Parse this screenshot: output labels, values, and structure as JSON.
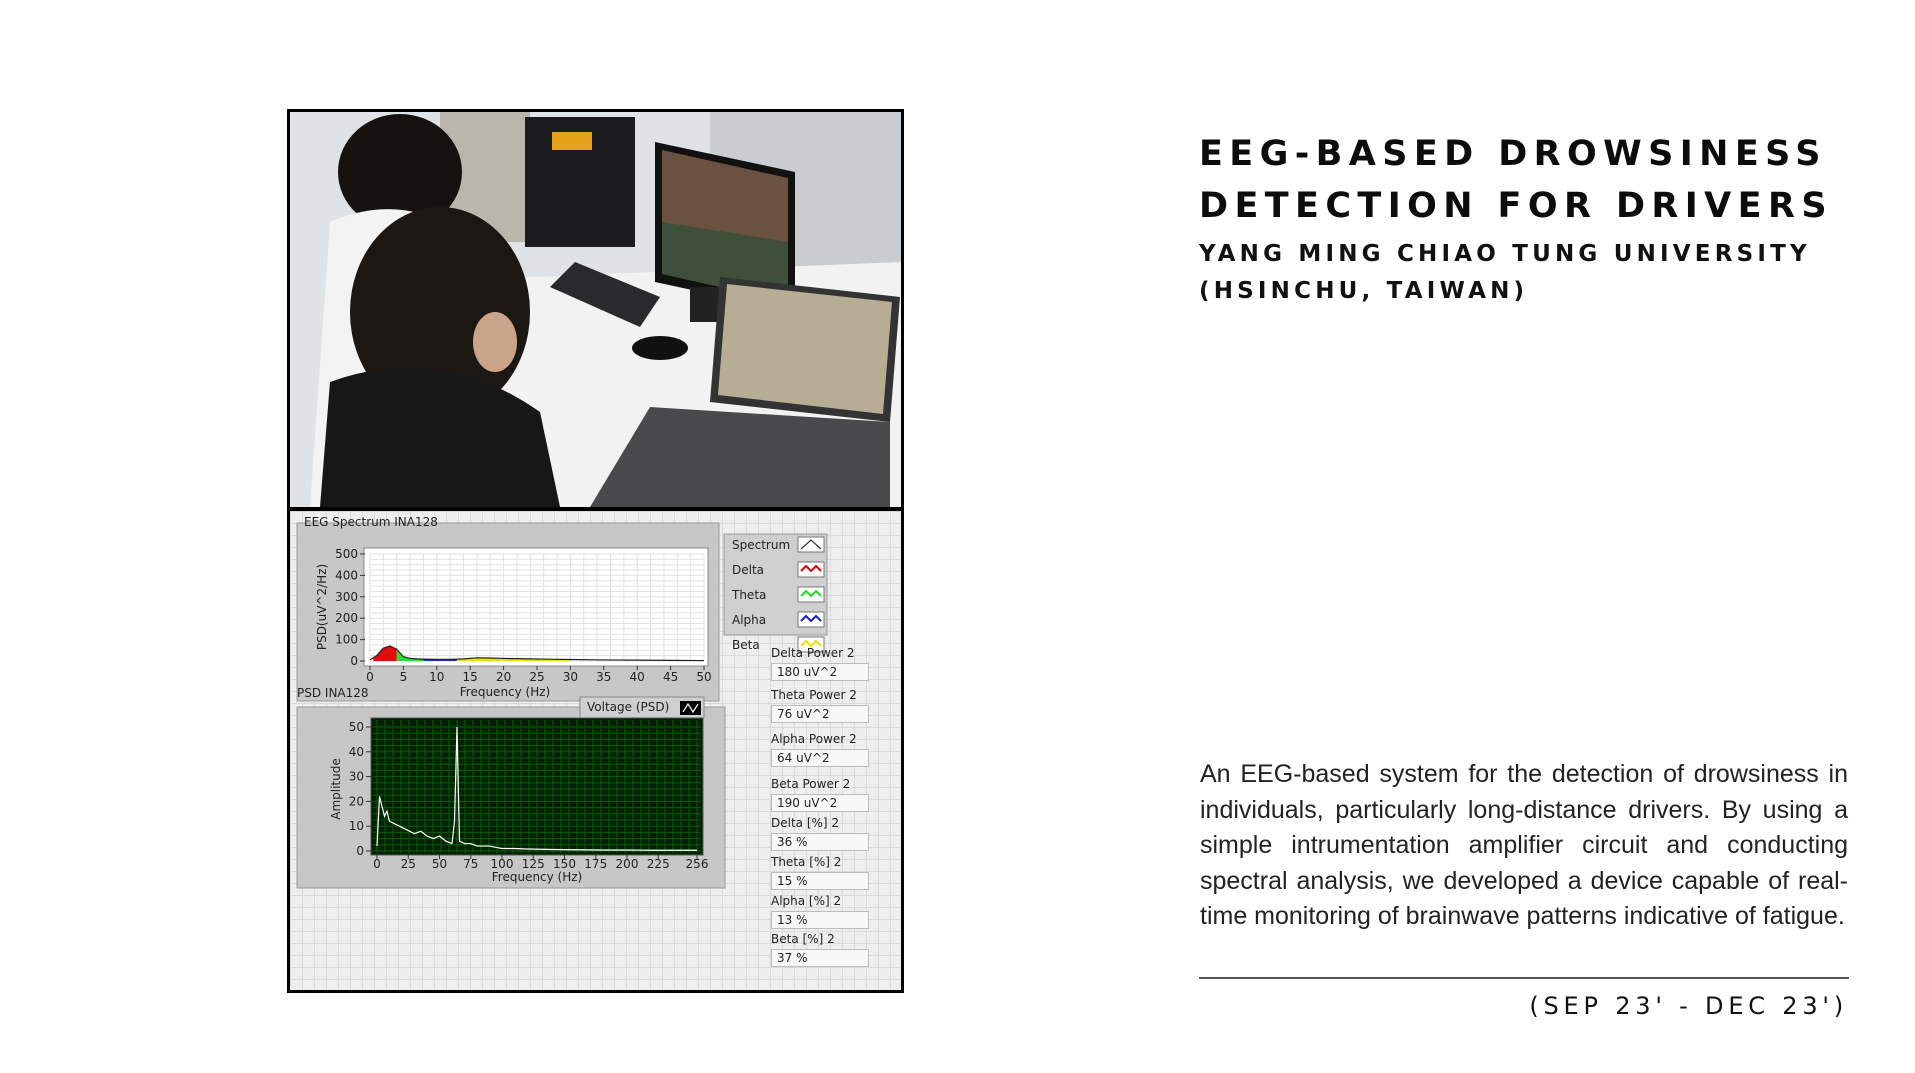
{
  "project": {
    "title_lines": [
      "EEG-BASED DROWSINESS",
      "DETECTION FOR DRIVERS"
    ],
    "institution_lines": [
      "YANG MING CHIAO TUNG UNIVERSITY",
      "(HSINCHU, TAIWAN)"
    ],
    "description": "An EEG-based system for the detection of drowsiness in individuals, particularly long-distance drivers. By using a simple intrumentation amplifier circuit and conducting spectral analysis, we developed a device capable of real-time monitoring of brainwave patterns indicative of fatigue.",
    "date_range": "(SEP 23' - DEC 23')"
  },
  "labview": {
    "spectrum_panel": {
      "title": "EEG Spectrum INA128",
      "ylabel": "PSD(uV^2/Hz)",
      "xlabel": "Frequency (Hz)",
      "y_ticks": [
        "500",
        "400",
        "300",
        "200",
        "100",
        "0"
      ],
      "x_ticks": [
        "0",
        "5",
        "10",
        "15",
        "20",
        "25",
        "30",
        "35",
        "40",
        "45",
        "50"
      ],
      "legend": [
        {
          "label": "Spectrum",
          "color": "#333333"
        },
        {
          "label": "Delta",
          "color": "#e00000"
        },
        {
          "label": "Theta",
          "color": "#22dd22"
        },
        {
          "label": "Alpha",
          "color": "#1020d0"
        },
        {
          "label": "Beta",
          "color": "#e8e000"
        }
      ]
    },
    "psd_panel": {
      "title": "PSD INA128",
      "legend_label": "Voltage (PSD)",
      "ylabel": "Amplitude",
      "xlabel": "Frequency (Hz)",
      "y_ticks": [
        "50",
        "40",
        "30",
        "20",
        "10",
        "0"
      ],
      "x_ticks": [
        "0",
        "25",
        "50",
        "75",
        "100",
        "125",
        "150",
        "175",
        "200",
        "225",
        "256"
      ]
    },
    "indicators": [
      {
        "label": "Delta Power 2",
        "value": "180 uV^2"
      },
      {
        "label": "Theta Power 2",
        "value": "76 uV^2"
      },
      {
        "label": "Alpha Power 2",
        "value": "64 uV^2"
      },
      {
        "label": "Beta Power 2",
        "value": "190 uV^2"
      },
      {
        "label": "Delta [%] 2",
        "value": "36 %"
      },
      {
        "label": "Theta [%] 2",
        "value": "15 %"
      },
      {
        "label": "Alpha [%] 2",
        "value": "13 %"
      },
      {
        "label": "Beta [%] 2",
        "value": "37 %"
      }
    ]
  },
  "chart_data": [
    {
      "type": "area",
      "title": "EEG Spectrum INA128",
      "xlabel": "Frequency (Hz)",
      "ylabel": "PSD(uV^2/Hz)",
      "xlim": [
        0,
        50
      ],
      "ylim": [
        0,
        500
      ],
      "grid": true,
      "legend_position": "right",
      "x": [
        0,
        1,
        2,
        3,
        4,
        5,
        6,
        7,
        8,
        10,
        12,
        14,
        16,
        18,
        20,
        22,
        24,
        26,
        28,
        30,
        35,
        40,
        45,
        50
      ],
      "series": [
        {
          "name": "Spectrum",
          "values": [
            5,
            25,
            60,
            70,
            55,
            20,
            12,
            10,
            9,
            8,
            8,
            10,
            15,
            14,
            12,
            11,
            10,
            9,
            8,
            7,
            5,
            4,
            3,
            2
          ]
        },
        {
          "name": "Delta",
          "range": [
            0.5,
            4
          ]
        },
        {
          "name": "Theta",
          "range": [
            4,
            8
          ]
        },
        {
          "name": "Alpha",
          "range": [
            8,
            13
          ]
        },
        {
          "name": "Beta",
          "range": [
            13,
            30
          ]
        }
      ]
    },
    {
      "type": "line",
      "title": "PSD INA128",
      "xlabel": "Frequency (Hz)",
      "ylabel": "Amplitude",
      "xlim": [
        0,
        256
      ],
      "ylim": [
        0,
        50
      ],
      "grid": true,
      "legend_position": "top-right",
      "series": [
        {
          "name": "Voltage (PSD)",
          "x": [
            0,
            2,
            4,
            6,
            8,
            10,
            14,
            18,
            22,
            26,
            30,
            35,
            40,
            45,
            50,
            55,
            60,
            62,
            64,
            66,
            70,
            75,
            80,
            85,
            90,
            95,
            100,
            110,
            120,
            140,
            160,
            180,
            200,
            220,
            240,
            256
          ],
          "values": [
            2,
            22,
            18,
            14,
            16,
            12,
            11,
            10,
            9,
            8,
            7,
            8,
            6,
            5,
            6,
            4,
            3,
            12,
            50,
            4,
            3,
            3,
            2,
            2,
            2,
            1.5,
            1,
            1,
            0.8,
            0.6,
            0.5,
            0.4,
            0.4,
            0.3,
            0.3,
            0.3
          ]
        }
      ]
    }
  ]
}
